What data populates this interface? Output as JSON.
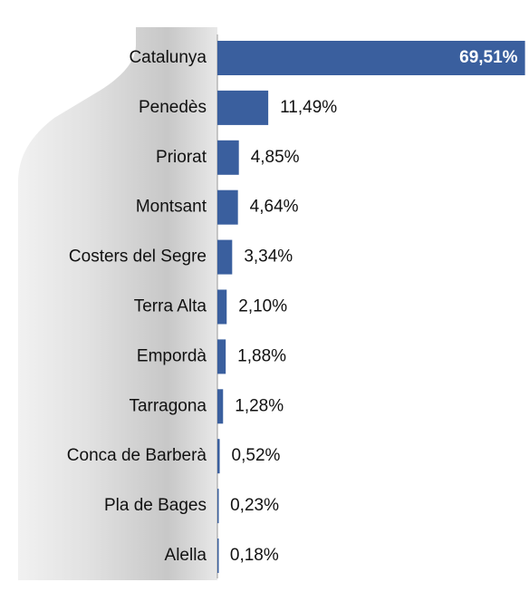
{
  "chart_data": {
    "type": "bar",
    "orientation": "horizontal",
    "categories": [
      "Catalunya",
      "Penedès",
      "Priorat",
      "Montsant",
      "Costers del Segre",
      "Terra Alta",
      "Empordà",
      "Tarragona",
      "Conca de Barberà",
      "Pla de Bages",
      "Alella"
    ],
    "values": [
      69.51,
      11.49,
      4.85,
      4.64,
      3.34,
      2.1,
      1.88,
      1.28,
      0.52,
      0.23,
      0.18
    ],
    "value_labels": [
      "69,51%",
      "11,49%",
      "4,85%",
      "4,64%",
      "3,34%",
      "2,10%",
      "1,88%",
      "1,28%",
      "0,52%",
      "0,23%",
      "0,18%"
    ],
    "color": "#3a5f9e",
    "xlim": [
      0,
      70
    ]
  }
}
